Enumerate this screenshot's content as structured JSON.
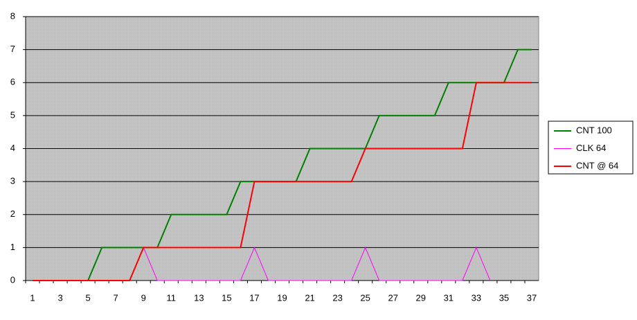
{
  "chart_data": {
    "type": "line",
    "categories": [
      1,
      null,
      3,
      null,
      5,
      null,
      7,
      null,
      9,
      null,
      11,
      null,
      13,
      null,
      15,
      null,
      17,
      null,
      19,
      null,
      21,
      null,
      23,
      null,
      25,
      null,
      27,
      null,
      29,
      null,
      31,
      null,
      33,
      null,
      35,
      null,
      37
    ],
    "series": [
      {
        "name": "CNT 100",
        "color": "#008000",
        "values": [
          0,
          0,
          0,
          0,
          0,
          1,
          1,
          1,
          1,
          1,
          2,
          2,
          2,
          2,
          2,
          3,
          3,
          3,
          3,
          3,
          4,
          4,
          4,
          4,
          4,
          5,
          5,
          5,
          5,
          5,
          6,
          6,
          6,
          6,
          6,
          7,
          7
        ]
      },
      {
        "name": "CLK 64",
        "color": "#ff00ff",
        "values": [
          0,
          0,
          0,
          0,
          0,
          0,
          0,
          0,
          1,
          0,
          0,
          0,
          0,
          0,
          0,
          0,
          1,
          0,
          0,
          0,
          0,
          0,
          0,
          0,
          1,
          0,
          0,
          0,
          0,
          0,
          0,
          0,
          1,
          0,
          null,
          null,
          null
        ]
      },
      {
        "name": "CNT @ 64",
        "color": "#ff0000",
        "values": [
          0,
          0,
          0,
          0,
          0,
          0,
          0,
          0,
          1,
          1,
          1,
          1,
          1,
          1,
          1,
          1,
          3,
          3,
          3,
          3,
          3,
          3,
          3,
          3,
          4,
          4,
          4,
          4,
          4,
          4,
          4,
          4,
          6,
          6,
          6,
          6,
          6
        ]
      }
    ],
    "ylim": [
      0,
      8
    ],
    "yticks": [
      0,
      1,
      2,
      3,
      4,
      5,
      6,
      7,
      8
    ],
    "grid": true,
    "legend": "right"
  }
}
